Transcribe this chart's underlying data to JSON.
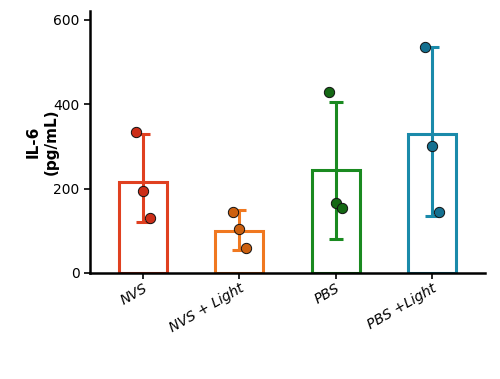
{
  "categories": [
    "NVS",
    "NVS + Light",
    "PBS",
    "PBS +Light"
  ],
  "bar_means": [
    215,
    100,
    245,
    330
  ],
  "bar_errors_low": [
    95,
    45,
    165,
    195
  ],
  "bar_errors_high": [
    115,
    50,
    160,
    205
  ],
  "data_points": [
    [
      335,
      195,
      130
    ],
    [
      145,
      105,
      60
    ],
    [
      430,
      165,
      155
    ],
    [
      535,
      300,
      145
    ]
  ],
  "bar_colors": [
    "#E04020",
    "#F07820",
    "#1A8A20",
    "#1A8AAA"
  ],
  "dot_colors": [
    "#CC2E18",
    "#CC6010",
    "#146814",
    "#147090"
  ],
  "ylabel_line1": "IL-6",
  "ylabel_line2": "(pg/mL)",
  "ylim": [
    0,
    620
  ],
  "yticks": [
    0,
    200,
    400,
    600
  ],
  "bar_width": 0.5,
  "linewidth": 2.2,
  "capsize": 5,
  "dot_size": 55,
  "background_color": "#ffffff"
}
